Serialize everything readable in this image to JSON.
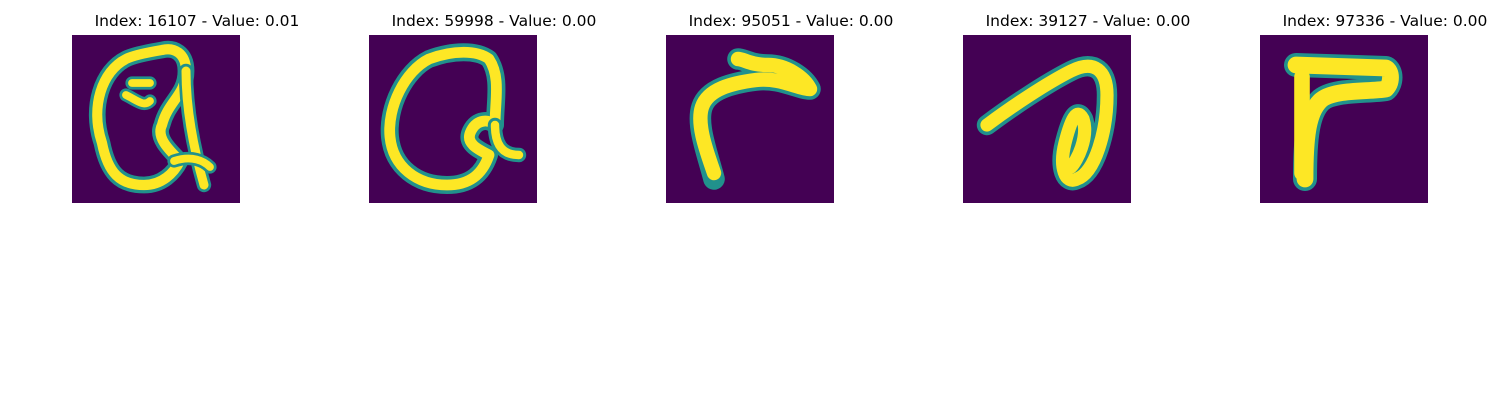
{
  "colors": {
    "background": "#440154",
    "stroke_mid": "#21918c",
    "stroke_core": "#fde725"
  },
  "panels": [
    {
      "title": "Index: 16107 - Value: 0.01",
      "glyph": "looped-a"
    },
    {
      "title": "Index: 59998 - Value: 0.00",
      "glyph": "looped-a-variant"
    },
    {
      "title": "Index: 95051 - Value: 0.00",
      "glyph": "curved-hook"
    },
    {
      "title": "Index: 39127 - Value: 0.00",
      "glyph": "looped-stroke"
    },
    {
      "title": "Index: 97336 - Value: 0.00",
      "glyph": "t-bar"
    }
  ]
}
